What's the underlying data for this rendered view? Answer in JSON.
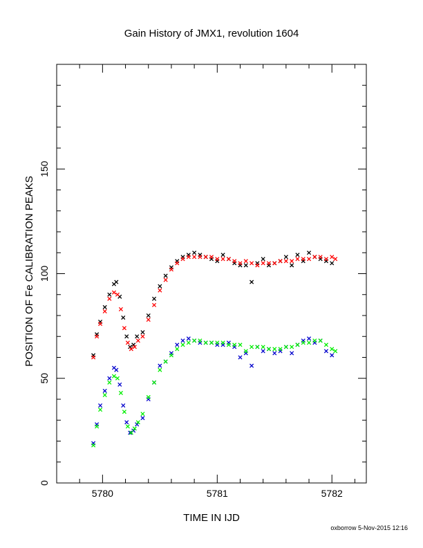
{
  "chart_data": {
    "type": "scatter",
    "title": "Gain History of JMX1, revolution 1604",
    "xlabel": "TIME IN IJD",
    "ylabel": "POSITION OF Fe CALIBRATION PEAKS",
    "xlim": [
      5779.6,
      5782.3
    ],
    "ylim": [
      0,
      200
    ],
    "xticks": [
      5780,
      5781,
      5782
    ],
    "yticks": [
      0,
      50,
      100,
      150
    ],
    "grid": false,
    "legend": "none",
    "series": [
      {
        "marker": "x",
        "color": "#000000",
        "x": [
          5779.92,
          5779.95,
          5779.98,
          5780.02,
          5780.06,
          5780.1,
          5780.12,
          5780.15,
          5780.18,
          5780.21,
          5780.24,
          5780.27,
          5780.3,
          5780.35,
          5780.4,
          5780.45,
          5780.5,
          5780.55,
          5780.6,
          5780.65,
          5780.7,
          5780.75,
          5780.8,
          5780.85,
          5780.9,
          5780.95,
          5781.0,
          5781.05,
          5781.1,
          5781.15,
          5781.2,
          5781.25,
          5781.3,
          5781.35,
          5781.4,
          5781.45,
          5781.5,
          5781.55,
          5781.6,
          5781.65,
          5781.7,
          5781.75,
          5781.8,
          5781.85,
          5781.9,
          5781.95,
          5782.0
        ],
        "y": [
          61,
          71,
          77,
          84,
          90,
          95,
          96,
          89,
          79,
          70,
          65,
          66,
          70,
          72,
          80,
          88,
          94,
          99,
          103,
          106,
          108,
          109,
          110,
          109,
          108,
          107,
          106,
          109,
          107,
          105,
          104,
          104,
          96,
          105,
          107,
          104,
          105,
          106,
          108,
          104,
          109,
          106,
          110,
          108,
          107,
          106,
          105
        ]
      },
      {
        "marker": "x",
        "color": "#ff0000",
        "x": [
          5779.92,
          5779.95,
          5779.98,
          5780.02,
          5780.06,
          5780.1,
          5780.13,
          5780.16,
          5780.19,
          5780.22,
          5780.25,
          5780.28,
          5780.31,
          5780.35,
          5780.4,
          5780.45,
          5780.5,
          5780.55,
          5780.6,
          5780.65,
          5780.7,
          5780.75,
          5780.8,
          5780.85,
          5780.9,
          5780.95,
          5781.0,
          5781.05,
          5781.1,
          5781.15,
          5781.2,
          5781.25,
          5781.3,
          5781.35,
          5781.4,
          5781.45,
          5781.5,
          5781.55,
          5781.6,
          5781.65,
          5781.7,
          5781.75,
          5781.8,
          5781.85,
          5781.9,
          5781.95,
          5782.0,
          5782.03
        ],
        "y": [
          60,
          70,
          76,
          82,
          88,
          91,
          90,
          83,
          74,
          67,
          64,
          65,
          68,
          70,
          78,
          85,
          92,
          97,
          102,
          105,
          107,
          108,
          108,
          108,
          108,
          108,
          107,
          107,
          107,
          106,
          105,
          106,
          105,
          104,
          105,
          105,
          105,
          106,
          106,
          106,
          107,
          107,
          107,
          108,
          108,
          107,
          108,
          107
        ]
      },
      {
        "marker": "x",
        "color": "#0000cc",
        "x": [
          5779.92,
          5779.95,
          5779.98,
          5780.02,
          5780.06,
          5780.1,
          5780.12,
          5780.15,
          5780.18,
          5780.21,
          5780.24,
          5780.27,
          5780.3,
          5780.35,
          5780.4,
          5780.45,
          5780.5,
          5780.55,
          5780.6,
          5780.65,
          5780.7,
          5780.75,
          5780.8,
          5780.85,
          5780.9,
          5780.95,
          5781.0,
          5781.05,
          5781.1,
          5781.15,
          5781.2,
          5781.25,
          5781.3,
          5781.35,
          5781.4,
          5781.45,
          5781.5,
          5781.55,
          5781.6,
          5781.65,
          5781.7,
          5781.75,
          5781.8,
          5781.85,
          5781.9,
          5781.95,
          5782.0
        ],
        "y": [
          19,
          28,
          37,
          44,
          50,
          55,
          54,
          47,
          37,
          29,
          24,
          25,
          28,
          31,
          40,
          48,
          56,
          58,
          62,
          66,
          68,
          69,
          68,
          67,
          67,
          67,
          66,
          66,
          67,
          65,
          60,
          62,
          56,
          65,
          63,
          64,
          62,
          63,
          65,
          62,
          66,
          68,
          69,
          67,
          68,
          63,
          61
        ]
      },
      {
        "marker": "x",
        "color": "#00ee00",
        "x": [
          5779.92,
          5779.95,
          5779.98,
          5780.02,
          5780.06,
          5780.1,
          5780.13,
          5780.16,
          5780.19,
          5780.22,
          5780.25,
          5780.28,
          5780.31,
          5780.35,
          5780.4,
          5780.45,
          5780.5,
          5780.55,
          5780.6,
          5780.65,
          5780.7,
          5780.75,
          5780.8,
          5780.85,
          5780.9,
          5780.95,
          5781.0,
          5781.05,
          5781.1,
          5781.15,
          5781.2,
          5781.25,
          5781.3,
          5781.35,
          5781.4,
          5781.45,
          5781.5,
          5781.55,
          5781.6,
          5781.65,
          5781.7,
          5781.75,
          5781.8,
          5781.85,
          5781.9,
          5781.95,
          5782.0,
          5782.03
        ],
        "y": [
          18,
          27,
          35,
          42,
          48,
          51,
          50,
          43,
          34,
          27,
          24,
          26,
          29,
          33,
          41,
          48,
          54,
          58,
          61,
          64,
          66,
          67,
          68,
          68,
          67,
          67,
          67,
          67,
          66,
          66,
          66,
          63,
          65,
          65,
          65,
          64,
          64,
          64,
          65,
          65,
          66,
          67,
          67,
          68,
          68,
          66,
          64,
          63
        ]
      }
    ]
  },
  "footer": "oxborrow  5-Nov-2015 12:16"
}
